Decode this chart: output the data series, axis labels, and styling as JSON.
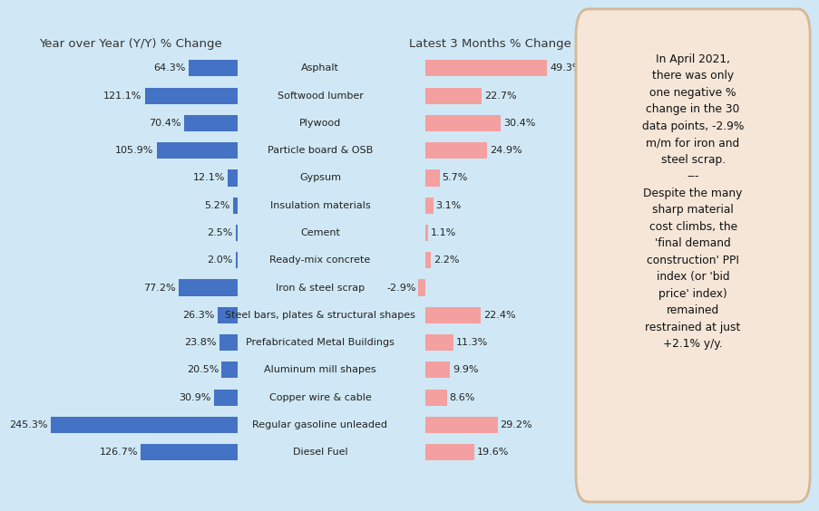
{
  "categories": [
    "Asphalt",
    "Softwood lumber",
    "Plywood",
    "Particle board & OSB",
    "Gypsum",
    "Insulation materials",
    "Cement",
    "Ready-mix concrete",
    "Iron & steel scrap",
    "Steel bars, plates & structural shapes",
    "Prefabricated Metal Buildings",
    "Aluminum mill shapes",
    "Copper wire & cable",
    "Regular gasoline unleaded",
    "Diesel Fuel"
  ],
  "yoy_values": [
    64.3,
    121.1,
    70.4,
    105.9,
    12.1,
    5.2,
    2.5,
    2.0,
    77.2,
    26.3,
    23.8,
    20.5,
    30.9,
    245.3,
    126.7
  ],
  "m3_values": [
    49.3,
    22.7,
    30.4,
    24.9,
    5.7,
    3.1,
    1.1,
    2.2,
    -2.9,
    22.4,
    11.3,
    9.9,
    8.6,
    29.2,
    19.6
  ],
  "yoy_color": "#4472C4",
  "m3_pos_color": "#F4A0A0",
  "bg_color": "#D0E8F5",
  "annotation_bg": "#F5E6D8",
  "title_left": "Year over Year (Y/Y) % Change",
  "title_right": "Latest 3 Months % Change",
  "annotation_line1": "In April 2021,",
  "annotation_line2": "there was only",
  "annotation_line3": "one negative %",
  "annotation_line4": "change in the 30",
  "annotation_line5": "data points, -2.9%",
  "annotation_line6": "m/m for iron and",
  "annotation_line7": "steel scrap.",
  "annotation_sep": "---",
  "annotation_line8": "Despite the many",
  "annotation_line9": "sharp material",
  "annotation_line10": "cost climbs, the",
  "annotation_line11": "'final demand",
  "annotation_line12": "construction' PPI",
  "annotation_line13": "index (or 'bid",
  "annotation_line14": "price' index)",
  "annotation_line15": "remained",
  "annotation_line16": "restrained at just",
  "annotation_line17": "+2.1% y/y."
}
